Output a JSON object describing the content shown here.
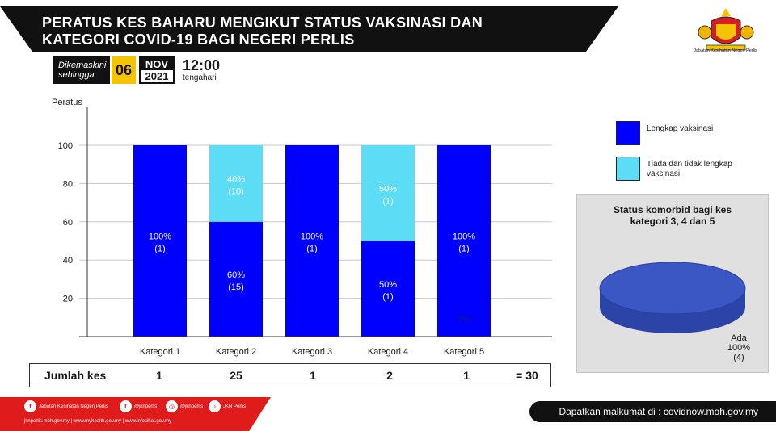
{
  "header": {
    "title_line1": "PERATUS KES BAHARU MENGIKUT STATUS VAKSINASI  DAN",
    "title_line2": "KATEGORI COVID-19 BAGI NEGERI PERLIS"
  },
  "updated": {
    "label_line1": "Dikemaskini",
    "label_line2": "sehingga",
    "day": "06",
    "month": "NOV",
    "year": "2021",
    "time": "12:00",
    "period": "tengahari"
  },
  "agency": {
    "name": "Jabatan Kesihatan Negeri Perlis"
  },
  "colors": {
    "vaccinated": "#0000ff",
    "unvaccinated": "#5cdcf5",
    "banner": "#111111",
    "footer_red": "#e01b1b"
  },
  "chart_data": {
    "type": "bar",
    "stacked": true,
    "ylabel": "Peratus",
    "xlabel": "",
    "ylim": [
      0,
      100
    ],
    "yticks": [
      20,
      40,
      60,
      80,
      100
    ],
    "categories": [
      "Kategori 1",
      "Kategori 2",
      "Kategori 3",
      "Kategori 4",
      "Kategori 5"
    ],
    "series": [
      {
        "name": "Lengkap vaksinasi",
        "values": [
          100,
          60,
          100,
          50,
          100
        ],
        "counts": [
          1,
          15,
          1,
          1,
          1
        ],
        "labels": [
          "100%",
          "60%",
          "100%",
          "50%",
          "100%"
        ],
        "count_labels": [
          "(1)",
          "(15)",
          "(1)",
          "(1)",
          "(1)"
        ]
      },
      {
        "name": "Tiada dan tidak lengkap vaksinasi",
        "values": [
          0,
          40,
          0,
          50,
          0
        ],
        "counts": [
          0,
          10,
          0,
          1,
          0
        ],
        "labels": [
          "",
          "40%",
          "",
          "50%",
          "0%"
        ],
        "count_labels": [
          "",
          "(10)",
          "",
          "(1)",
          ""
        ]
      }
    ],
    "grid": true,
    "legend": "right"
  },
  "totals": {
    "label": "Jumlah kes",
    "values": [
      "1",
      "25",
      "1",
      "2",
      "1"
    ],
    "grand_total": "= 30"
  },
  "comorbid": {
    "title": "Status komorbid bagi kes kategori 3, 4 dan 5",
    "slice_label": "Ada",
    "slice_percent": "100%",
    "slice_count": "(4)",
    "slice_value": 100,
    "color": "#3a57c4"
  },
  "footer": {
    "social": [
      {
        "icon": "facebook-icon",
        "glyph": "f",
        "label": "Jabatan Kesihatan Negeri Perlis"
      },
      {
        "icon": "twitter-icon",
        "glyph": "t",
        "label": "@jknperlis"
      },
      {
        "icon": "instagram-icon",
        "glyph": "◎",
        "label": "@jknperlis"
      },
      {
        "icon": "tiktok-icon",
        "glyph": "♪",
        "label": "JKN Perlis"
      }
    ],
    "links": "jknperlis.moh.gov.my  |  www.myhealth.gov.my  |  www.infosihat.gov.my",
    "info": "Dapatkan malkumat di : covidnow.moh.gov.my"
  }
}
